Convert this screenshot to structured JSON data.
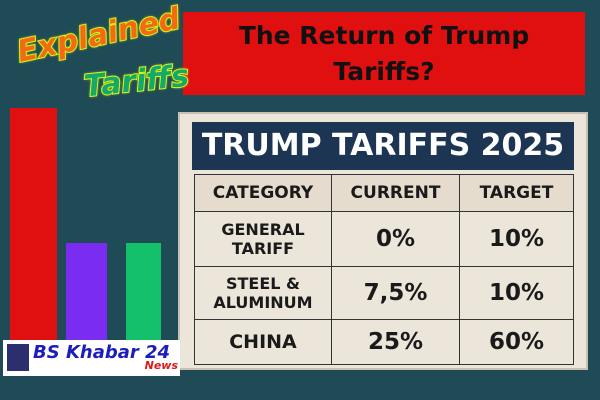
{
  "badge": {
    "line1": "Explained",
    "line2": "Tariffs"
  },
  "title": {
    "line1": "The Return of Trump",
    "line2": "Tariffs?"
  },
  "panel": {
    "heading": "TRUMP TARIFFS 2025",
    "columns": [
      "CATEGORY",
      "CURRENT",
      "TARGET"
    ],
    "rows": [
      {
        "category_1": "GENERAL",
        "category_2": "TARIFF",
        "current": "0%",
        "target": "10%"
      },
      {
        "category_1": "STEEL &",
        "category_2": "ALUMINUM",
        "current": "7,5%",
        "target": "10%"
      },
      {
        "category_1": "CHINA",
        "category_2": "",
        "current": "25%",
        "target": "60%"
      }
    ]
  },
  "logo": {
    "name": "BS Khabar 24",
    "sub": "News"
  },
  "colors": {
    "background": "#1f4b56",
    "red": "#e01010",
    "purple": "#7a2cf0",
    "green": "#14c06a"
  }
}
